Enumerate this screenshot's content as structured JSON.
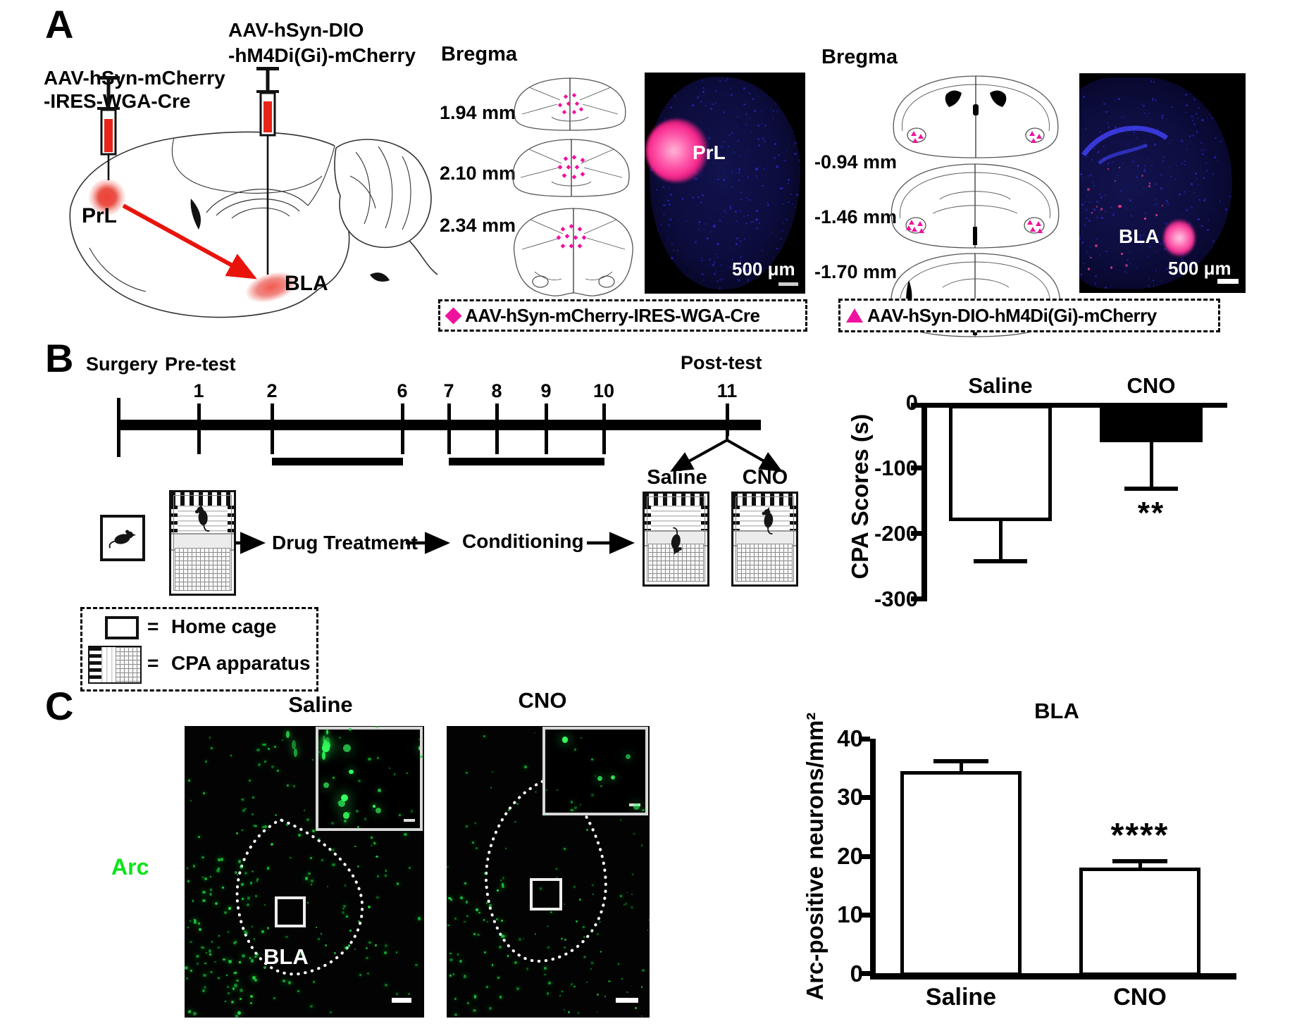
{
  "colors": {
    "magenta": "#F0129E",
    "green": "#0BE418",
    "red": "#E8140C",
    "micro_blue": "#2A2AE0",
    "micro_pink": "#FF3D96"
  },
  "panelA": {
    "label": "A",
    "virus_left": [
      "AAV-hSyn-mCherry",
      "-IRES-WGA-Cre"
    ],
    "virus_right": [
      "AAV-hSyn-DIO",
      "-hM4Di(Gi)-mCherry"
    ],
    "region_prl": "PrL",
    "region_bla": "BLA",
    "left_section": {
      "bregma_title": "Bregma",
      "bregma_values": [
        "1.94 mm",
        "2.10 mm",
        "2.34 mm"
      ],
      "micrograph_label": "PrL",
      "scale_bar": "500 μm",
      "legend": "AAV-hSyn-mCherry-IRES-WGA-Cre"
    },
    "right_section": {
      "bregma_title": "Bregma",
      "bregma_values": [
        "-0.94 mm",
        "-1.46 mm",
        "-1.70 mm"
      ],
      "micrograph_label": "BLA",
      "scale_bar": "500 μm",
      "legend": "AAV-hSyn-DIO-hM4Di(Gi)-mCherry"
    }
  },
  "panelB": {
    "label": "B",
    "timeline": {
      "surgery": "Surgery",
      "pretest": "Pre-test",
      "posttest": "Post-test",
      "days": [
        "1",
        "2",
        "6",
        "7",
        "8",
        "9",
        "10"
      ],
      "posttest_day": "11"
    },
    "flow": {
      "drug_treatment": "Drug Treatment",
      "conditioning": "Conditioning",
      "saline": "Saline",
      "cno": "CNO"
    },
    "legend": {
      "eq": "=",
      "home_cage": "Home cage",
      "cpa": "CPA apparatus"
    }
  },
  "panelC": {
    "label": "C",
    "stain": "Arc",
    "images": {
      "saline_title": "Saline",
      "cno_title": "CNO",
      "region": "BLA"
    }
  },
  "chart_data": [
    {
      "type": "bar",
      "title": "",
      "categories": [
        "Saline",
        "CNO"
      ],
      "values": [
        -177,
        -57
      ],
      "sem": [
        60,
        70
      ],
      "ylabel": "CPA Scores (s)",
      "yticks": [
        0,
        -100,
        -200,
        -300
      ],
      "ylim": [
        0,
        -300
      ],
      "significance": "**",
      "significance_on": "CNO",
      "bar_fills": [
        "#FFFFFF",
        "#000000"
      ],
      "bar_edge": "#000000",
      "grid": false,
      "legend_position": "none"
    },
    {
      "type": "bar",
      "title": "BLA",
      "categories": [
        "Saline",
        "CNO"
      ],
      "values": [
        34.9,
        18.4
      ],
      "sem": [
        1.5,
        0.9
      ],
      "ylabel": "Arc-positive neurons/mm²",
      "yticks": [
        40,
        30,
        20,
        10,
        0
      ],
      "ylim": [
        0,
        40
      ],
      "significance": "****",
      "significance_on": "CNO",
      "bar_fills": [
        "#FFFFFF",
        "#FFFFFF"
      ],
      "bar_edge": "#000000",
      "grid": false,
      "legend_position": "none"
    }
  ]
}
